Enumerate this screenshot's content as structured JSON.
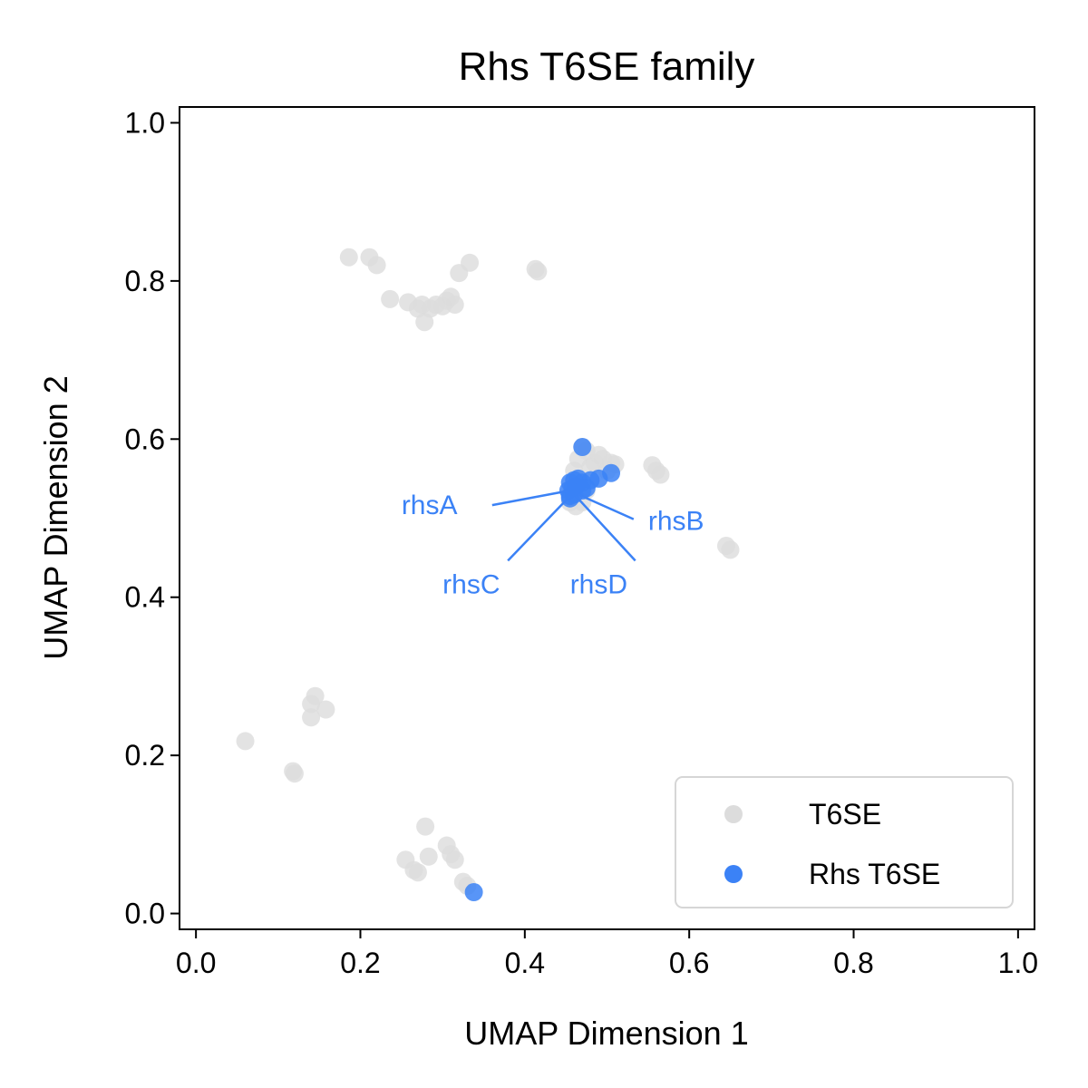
{
  "chart_data": {
    "type": "scatter",
    "title": "Rhs T6SE family",
    "xlabel": "UMAP Dimension 1",
    "ylabel": "UMAP Dimension 2",
    "xlim": [
      -0.02,
      1.02
    ],
    "ylim": [
      -0.02,
      1.02
    ],
    "xticks": [
      "0.0",
      "0.2",
      "0.4",
      "0.6",
      "0.8",
      "1.0"
    ],
    "yticks": [
      "0.0",
      "0.2",
      "0.4",
      "0.6",
      "0.8",
      "1.0"
    ],
    "grid": false,
    "legend_position": "bottom-right",
    "series": [
      {
        "name": "T6SE",
        "color": "#dcdcdc",
        "points": [
          [
            0.186,
            0.83
          ],
          [
            0.211,
            0.83
          ],
          [
            0.22,
            0.82
          ],
          [
            0.236,
            0.777
          ],
          [
            0.258,
            0.773
          ],
          [
            0.27,
            0.765
          ],
          [
            0.275,
            0.77
          ],
          [
            0.278,
            0.748
          ],
          [
            0.285,
            0.765
          ],
          [
            0.292,
            0.77
          ],
          [
            0.3,
            0.768
          ],
          [
            0.305,
            0.775
          ],
          [
            0.31,
            0.78
          ],
          [
            0.315,
            0.77
          ],
          [
            0.32,
            0.81
          ],
          [
            0.333,
            0.823
          ],
          [
            0.413,
            0.815
          ],
          [
            0.416,
            0.812
          ],
          [
            0.46,
            0.56
          ],
          [
            0.465,
            0.575
          ],
          [
            0.47,
            0.59
          ],
          [
            0.475,
            0.585
          ],
          [
            0.48,
            0.565
          ],
          [
            0.485,
            0.57
          ],
          [
            0.49,
            0.58
          ],
          [
            0.495,
            0.575
          ],
          [
            0.5,
            0.56
          ],
          [
            0.505,
            0.57
          ],
          [
            0.51,
            0.568
          ],
          [
            0.455,
            0.52
          ],
          [
            0.458,
            0.53
          ],
          [
            0.462,
            0.515
          ],
          [
            0.47,
            0.52
          ],
          [
            0.475,
            0.535
          ],
          [
            0.555,
            0.567
          ],
          [
            0.56,
            0.56
          ],
          [
            0.565,
            0.555
          ],
          [
            0.645,
            0.465
          ],
          [
            0.65,
            0.46
          ],
          [
            0.06,
            0.218
          ],
          [
            0.118,
            0.18
          ],
          [
            0.12,
            0.177
          ],
          [
            0.14,
            0.265
          ],
          [
            0.145,
            0.275
          ],
          [
            0.14,
            0.248
          ],
          [
            0.158,
            0.258
          ],
          [
            0.279,
            0.11
          ],
          [
            0.255,
            0.068
          ],
          [
            0.265,
            0.055
          ],
          [
            0.27,
            0.052
          ],
          [
            0.283,
            0.072
          ],
          [
            0.305,
            0.086
          ],
          [
            0.31,
            0.075
          ],
          [
            0.315,
            0.068
          ],
          [
            0.325,
            0.04
          ],
          [
            0.33,
            0.035
          ]
        ]
      },
      {
        "name": "Rhs T6SE",
        "color": "#3b82f6",
        "points": [
          [
            0.47,
            0.59
          ],
          [
            0.505,
            0.557
          ],
          [
            0.49,
            0.55
          ],
          [
            0.48,
            0.548
          ],
          [
            0.47,
            0.545
          ],
          [
            0.465,
            0.55
          ],
          [
            0.46,
            0.548
          ],
          [
            0.455,
            0.545
          ],
          [
            0.458,
            0.538
          ],
          [
            0.462,
            0.54
          ],
          [
            0.47,
            0.535
          ],
          [
            0.475,
            0.538
          ],
          [
            0.453,
            0.535
          ],
          [
            0.455,
            0.528
          ],
          [
            0.46,
            0.53
          ],
          [
            0.455,
            0.525
          ],
          [
            0.338,
            0.027
          ]
        ]
      }
    ],
    "annotations": [
      {
        "text": "rhsA",
        "text_at": [
          0.25,
          0.505
        ],
        "point": [
          0.455,
          0.535
        ]
      },
      {
        "text": "rhsB",
        "text_at": [
          0.55,
          0.485
        ],
        "point": [
          0.465,
          0.53
        ]
      },
      {
        "text": "rhsC",
        "text_at": [
          0.3,
          0.405
        ],
        "point": [
          0.455,
          0.528
        ]
      },
      {
        "text": "rhsD",
        "text_at": [
          0.455,
          0.405
        ],
        "point": [
          0.462,
          0.528
        ]
      }
    ],
    "annotation_color": "#3b82f6"
  }
}
